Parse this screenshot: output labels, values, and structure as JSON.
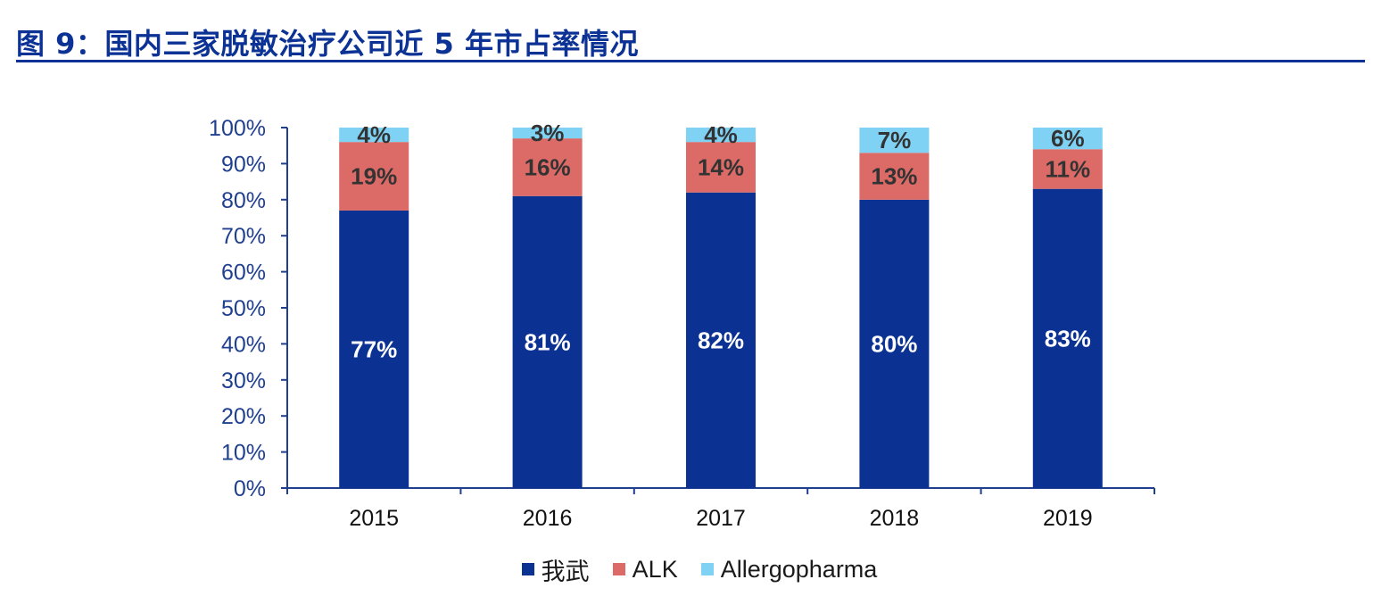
{
  "title": "图 9：国内三家脱敏治疗公司近 5 年市占率情况",
  "chart_data": {
    "type": "bar",
    "stacked": true,
    "categories": [
      "2015",
      "2016",
      "2017",
      "2018",
      "2019"
    ],
    "series": [
      {
        "name": "我武",
        "values": [
          77,
          81,
          82,
          80,
          83
        ],
        "labels": [
          "77%",
          "81%",
          "82%",
          "80%",
          "83%"
        ],
        "color": "#0B3293",
        "label_color": "#ffffff"
      },
      {
        "name": "ALK",
        "values": [
          19,
          16,
          14,
          13,
          11
        ],
        "labels": [
          "19%",
          "16%",
          "14%",
          "13%",
          "11%"
        ],
        "color": "#DC6A66",
        "label_color": "#333333"
      },
      {
        "name": "Allergopharma",
        "values": [
          4,
          3,
          4,
          7,
          6
        ],
        "labels": [
          "4%",
          "3%",
          "4%",
          "7%",
          "6%"
        ],
        "color": "#7FD2F4",
        "label_color": "#333333"
      }
    ],
    "y_ticks": [
      "0%",
      "10%",
      "20%",
      "30%",
      "40%",
      "50%",
      "60%",
      "70%",
      "80%",
      "90%",
      "100%"
    ],
    "ylim": [
      0,
      100
    ],
    "axis_color": "#1F3F8F",
    "legend_position": "bottom"
  }
}
